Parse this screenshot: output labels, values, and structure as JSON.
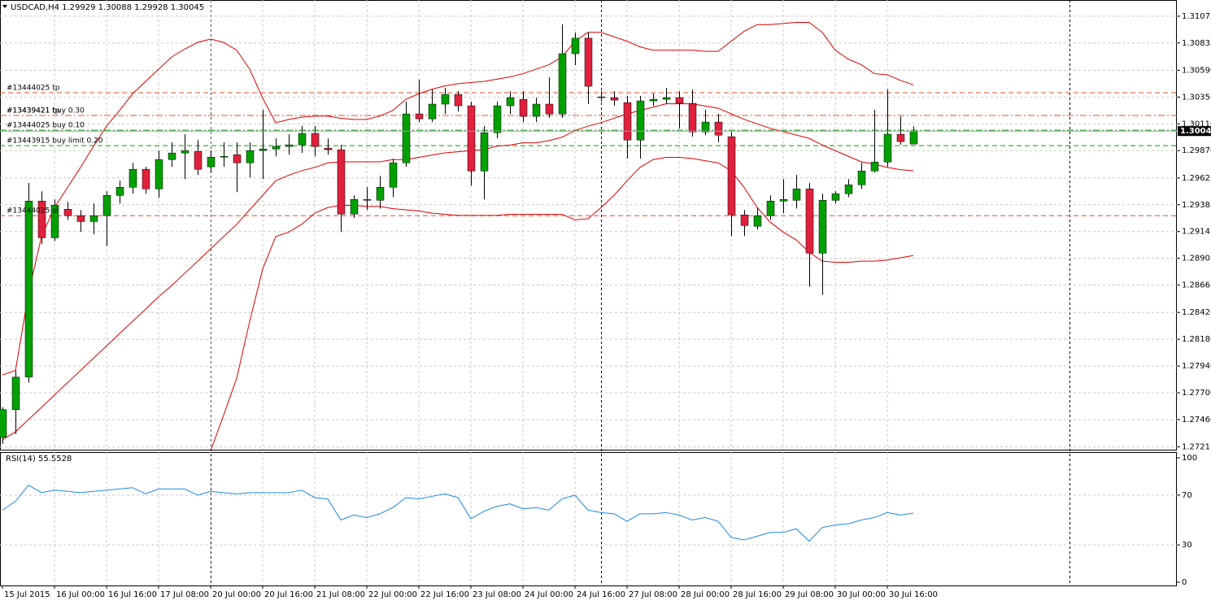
{
  "chart_data": {
    "type": "candlestick",
    "title": "USDCAD,H4  1.29929 1.30088 1.29928 1.30045",
    "categories": [
      "15 Jul 2015",
      null,
      null,
      null,
      "16 Jul 00:00",
      null,
      null,
      null,
      "16 Jul 16:00",
      null,
      null,
      null,
      "17 Jul 08:00",
      null,
      null,
      null,
      "20 Jul 00:00",
      null,
      null,
      null,
      "20 Jul 16:00",
      null,
      null,
      null,
      "21 Jul 08:00",
      null,
      null,
      null,
      "22 Jul 00:00",
      null,
      null,
      null,
      "22 Jul 16:00",
      null,
      null,
      null,
      "23 Jul 08:00",
      null,
      null,
      null,
      "24 Jul 00:00",
      null,
      null,
      null,
      "24 Jul 16:00",
      null,
      null,
      null,
      "27 Jul 08:00",
      null,
      null,
      null,
      "28 Jul 00:00",
      null,
      null,
      null,
      "28 Jul 16:00",
      null,
      null,
      null,
      "29 Jul 08:00",
      null,
      null,
      null,
      "30 Jul 00:00",
      null,
      null,
      null,
      "30 Jul 16:00",
      null,
      null
    ],
    "open": [
      1.27301,
      1.27549,
      1.27841,
      1.29418,
      1.29089,
      1.29345,
      1.29287,
      1.29235,
      1.29287,
      1.29469,
      1.29542,
      1.29703,
      1.29527,
      1.2979,
      1.29849,
      1.29863,
      1.29725,
      1.29812,
      1.29834,
      1.29761,
      1.29871,
      1.29885,
      1.29907,
      1.29922,
      1.30024,
      1.29892,
      1.29878,
      1.29301,
      1.29433,
      1.29425,
      1.29542,
      1.29761,
      1.30199,
      1.30155,
      1.30287,
      1.30374,
      1.30272,
      1.29688,
      1.30031,
      1.30272,
      1.3033,
      1.30177,
      1.30287,
      1.30199,
      1.30739,
      1.30878,
      1.30345,
      1.30345,
      1.30301,
      1.29965,
      1.30316,
      1.3033,
      1.30345,
      1.30294,
      1.30038,
      1.30126,
      1.29995,
      1.29294,
      1.29192,
      1.29287,
      1.29418,
      1.29425,
      1.29527,
      1.28951,
      1.29425,
      1.29484,
      1.29564,
      1.29688,
      1.29768,
      1.30017,
      1.29929
    ],
    "high": [
      1.27571,
      1.279,
      1.29579,
      1.29506,
      1.29433,
      1.29411,
      1.29338,
      1.29396,
      1.29506,
      1.296,
      1.29761,
      1.29725,
      1.29871,
      1.29944,
      1.30017,
      1.29965,
      1.29871,
      1.29944,
      1.29944,
      1.29944,
      1.30236,
      1.2998,
      1.30017,
      1.3009,
      1.3009,
      1.2998,
      1.29922,
      1.29469,
      1.29542,
      1.29644,
      1.29798,
      1.30309,
      1.30506,
      1.30418,
      1.30433,
      1.30403,
      1.30309,
      1.3009,
      1.30309,
      1.30403,
      1.30403,
      1.30345,
      1.30528,
      1.31002,
      1.30929,
      1.30929,
      1.30403,
      1.30403,
      1.3036,
      1.3036,
      1.30382,
      1.30433,
      1.30403,
      1.30418,
      1.30236,
      1.30199,
      1.30038,
      1.29338,
      1.2936,
      1.29469,
      1.29615,
      1.29652,
      1.29579,
      1.29484,
      1.29506,
      1.29615,
      1.29761,
      1.30236,
      1.30418,
      1.30177,
      1.30088
    ],
    "low": [
      1.27243,
      1.2733,
      1.2779,
      1.29031,
      1.2906,
      1.2925,
      1.29141,
      1.29119,
      1.29016,
      1.29396,
      1.29484,
      1.29484,
      1.29447,
      1.29725,
      1.29615,
      1.29652,
      1.29673,
      1.29725,
      1.29498,
      1.2963,
      1.29615,
      1.29819,
      1.29834,
      1.29849,
      1.29819,
      1.29834,
      1.29141,
      1.29265,
      1.29338,
      1.29352,
      1.29454,
      1.29725,
      1.30126,
      1.30126,
      1.30199,
      1.30221,
      1.29557,
      1.29433,
      1.2998,
      1.30199,
      1.30126,
      1.30126,
      1.30163,
      1.30163,
      1.30637,
      1.30287,
      1.30309,
      1.30272,
      1.29798,
      1.29798,
      1.30272,
      1.30287,
      1.30068,
      1.29995,
      1.30009,
      1.29944,
      1.29104,
      1.29104,
      1.29162,
      1.2925,
      1.29308,
      1.29352,
      1.28651,
      1.28578,
      1.29396,
      1.29454,
      1.29527,
      1.29673,
      1.29725,
      1.29922,
      1.29928
    ],
    "close": [
      1.27549,
      1.27841,
      1.29418,
      1.29089,
      1.29381,
      1.29287,
      1.29235,
      1.29287,
      1.29469,
      1.29542,
      1.29703,
      1.29527,
      1.2979,
      1.29849,
      1.29871,
      1.29703,
      1.29812,
      1.29819,
      1.29761,
      1.29871,
      1.29885,
      1.29907,
      1.29922,
      1.30024,
      1.29907,
      1.29878,
      1.29301,
      1.29433,
      1.29425,
      1.29542,
      1.29761,
      1.30199,
      1.30155,
      1.30287,
      1.30374,
      1.30272,
      1.29688,
      1.30031,
      1.30272,
      1.30345,
      1.30177,
      1.30287,
      1.30199,
      1.30739,
      1.30878,
      1.30447,
      1.30352,
      1.30323,
      1.29965,
      1.30316,
      1.3033,
      1.30345,
      1.30294,
      1.30038,
      1.30126,
      1.30009,
      1.29294,
      1.29199,
      1.29287,
      1.29418,
      1.29433,
      1.29527,
      1.28951,
      1.29425,
      1.29484,
      1.29564,
      1.29688,
      1.29768,
      1.30017,
      1.29951,
      1.30045
    ],
    "up_color": "#00a000",
    "down_color": "#e0203c",
    "bands": [
      {
        "color": "#e00000",
        "values": [
          1.2786,
          1.279,
          1.2859,
          1.291,
          1.2936,
          1.2954,
          1.2972,
          1.2991,
          1.3009,
          1.3023,
          1.3038,
          1.3049,
          1.306,
          1.3071,
          1.3078,
          1.3084,
          1.3087,
          1.3084,
          1.3077,
          1.306,
          1.3034,
          1.3012,
          1.3015,
          1.3017,
          1.3018,
          1.3018,
          1.3016,
          1.3015,
          1.3015,
          1.3018,
          1.3023,
          1.3033,
          1.3038,
          1.3042,
          1.3045,
          1.3047,
          1.3048,
          1.3049,
          1.3051,
          1.3053,
          1.3056,
          1.306,
          1.3064,
          1.3071,
          1.3085,
          1.3093,
          1.3093,
          1.3089,
          1.3085,
          1.308,
          1.3077,
          1.3077,
          1.3077,
          1.3077,
          1.3076,
          1.3076,
          1.3085,
          1.3094,
          1.31,
          1.31,
          1.3101,
          1.3102,
          1.3102,
          1.3093,
          1.3077,
          1.3069,
          1.3064,
          1.3056,
          1.3055,
          1.305,
          1.3046
        ]
      },
      {
        "color": "#e00000",
        "values": [
          1.2728,
          1.2735,
          1.2746,
          1.2757,
          1.2768,
          1.2779,
          1.279,
          1.2801,
          1.2812,
          1.2823,
          1.2834,
          1.2845,
          1.2856,
          1.2866,
          1.2877,
          1.2888,
          1.2899,
          1.291,
          1.2921,
          1.2934,
          1.2947,
          1.296,
          1.2965,
          1.2969,
          1.2972,
          1.2976,
          1.2977,
          1.2977,
          1.2977,
          1.2977,
          1.2979,
          1.2979,
          1.2981,
          1.2983,
          1.2985,
          1.2986,
          1.2987,
          1.2988,
          1.2991,
          1.2992,
          1.2994,
          1.2994,
          1.2996,
          1.2999,
          1.3005,
          1.3009,
          1.3012,
          1.3016,
          1.302,
          1.3023,
          1.3026,
          1.3029,
          1.3029,
          1.3029,
          1.3027,
          1.3025,
          1.302,
          1.3015,
          1.3011,
          1.3007,
          1.3004,
          1.3001,
          1.2998,
          1.2992,
          1.2987,
          1.2982,
          1.2977,
          1.2975,
          1.2972,
          1.297,
          1.2969
        ]
      },
      {
        "color": "#e00000",
        "values": [
          null,
          null,
          null,
          null,
          null,
          null,
          null,
          null,
          null,
          null,
          null,
          null,
          null,
          null,
          null,
          null,
          1.2718,
          1.275,
          1.2783,
          1.2834,
          1.2881,
          1.291,
          1.2914,
          1.2921,
          1.2931,
          1.2936,
          1.2938,
          1.2938,
          1.2937,
          1.2937,
          1.2935,
          1.2934,
          1.2933,
          1.2931,
          1.293,
          1.2929,
          1.2929,
          1.2929,
          1.2929,
          1.293,
          1.293,
          1.293,
          1.293,
          1.293,
          1.2925,
          1.2926,
          1.2936,
          1.2947,
          1.296,
          1.2972,
          1.2979,
          1.2981,
          1.2981,
          1.298,
          1.2978,
          1.2976,
          1.2969,
          1.2954,
          1.2936,
          1.2923,
          1.2914,
          1.2907,
          1.2896,
          1.2888,
          1.2887,
          1.2887,
          1.2888,
          1.2888,
          1.2889,
          1.2891,
          1.2893
        ]
      }
    ],
    "orders": [
      {
        "label": "#13444025 tp",
        "price": 1.30389,
        "color": "#e0502a",
        "style": "dash"
      },
      {
        "label": "#13439421 tp",
        "price": 1.30185,
        "color": "#e0502a",
        "style": "dashdot"
      },
      {
        "label": "#13439421 buy 0.30",
        "price": 1.30185,
        "color": "#e0502a",
        "style": "dashdot"
      },
      {
        "label": "#13444025 buy 0.10",
        "price": 1.30053,
        "color": "#00a000",
        "style": "dashdot"
      },
      {
        "label": "#13443915 buy limit 0.20",
        "price": 1.29915,
        "color": "#00a000",
        "style": "dash"
      },
      {
        "label": "#13444025 sl",
        "price": 1.29287,
        "color": "#e0502a",
        "style": "dash"
      }
    ],
    "ylim": [
      1.2719,
      1.3122
    ],
    "yticks": [
      1.31075,
      1.30835,
      {
        "value": 1.3059,
        "label": "1.30590"
      },
      {
        "value": 1.3035,
        "label": "1.30350"
      },
      {
        "value": 1.3011,
        "label": "1.30110"
      },
      {
        "value": 1.2987,
        "label": "1.29870"
      },
      1.29625,
      1.29385,
      1.29145,
      1.28905,
      1.28665,
      {
        "value": 1.2842,
        "label": "1.28420"
      },
      {
        "value": 1.2818,
        "label": "1.28180"
      },
      {
        "value": 1.2794,
        "label": "1.27940"
      },
      {
        "value": 1.277,
        "label": "1.27700"
      },
      {
        "value": 1.2746,
        "label": "1.27460"
      },
      1.27215
    ],
    "grid": true,
    "indicator": {
      "title": "RSI(14) 55.5528",
      "color": "#1e88e5",
      "values": [
        58,
        65,
        78,
        72,
        74,
        73,
        72,
        73,
        74,
        75,
        76,
        71,
        75,
        75,
        75,
        70,
        73,
        72,
        71,
        72,
        72,
        72,
        72,
        74,
        68,
        67,
        50,
        54,
        52,
        55,
        60,
        68,
        67,
        69,
        71,
        68,
        51,
        57,
        61,
        63,
        59,
        60,
        58,
        67,
        70,
        58,
        56,
        55,
        49,
        55,
        55,
        56,
        54,
        50,
        52,
        49,
        36,
        34,
        37,
        40,
        40,
        43,
        33,
        44,
        46,
        47,
        50,
        52,
        56,
        54,
        55.5528
      ],
      "ylim": [
        0,
        100
      ],
      "yticks": [
        100,
        70,
        30,
        0
      ]
    }
  }
}
